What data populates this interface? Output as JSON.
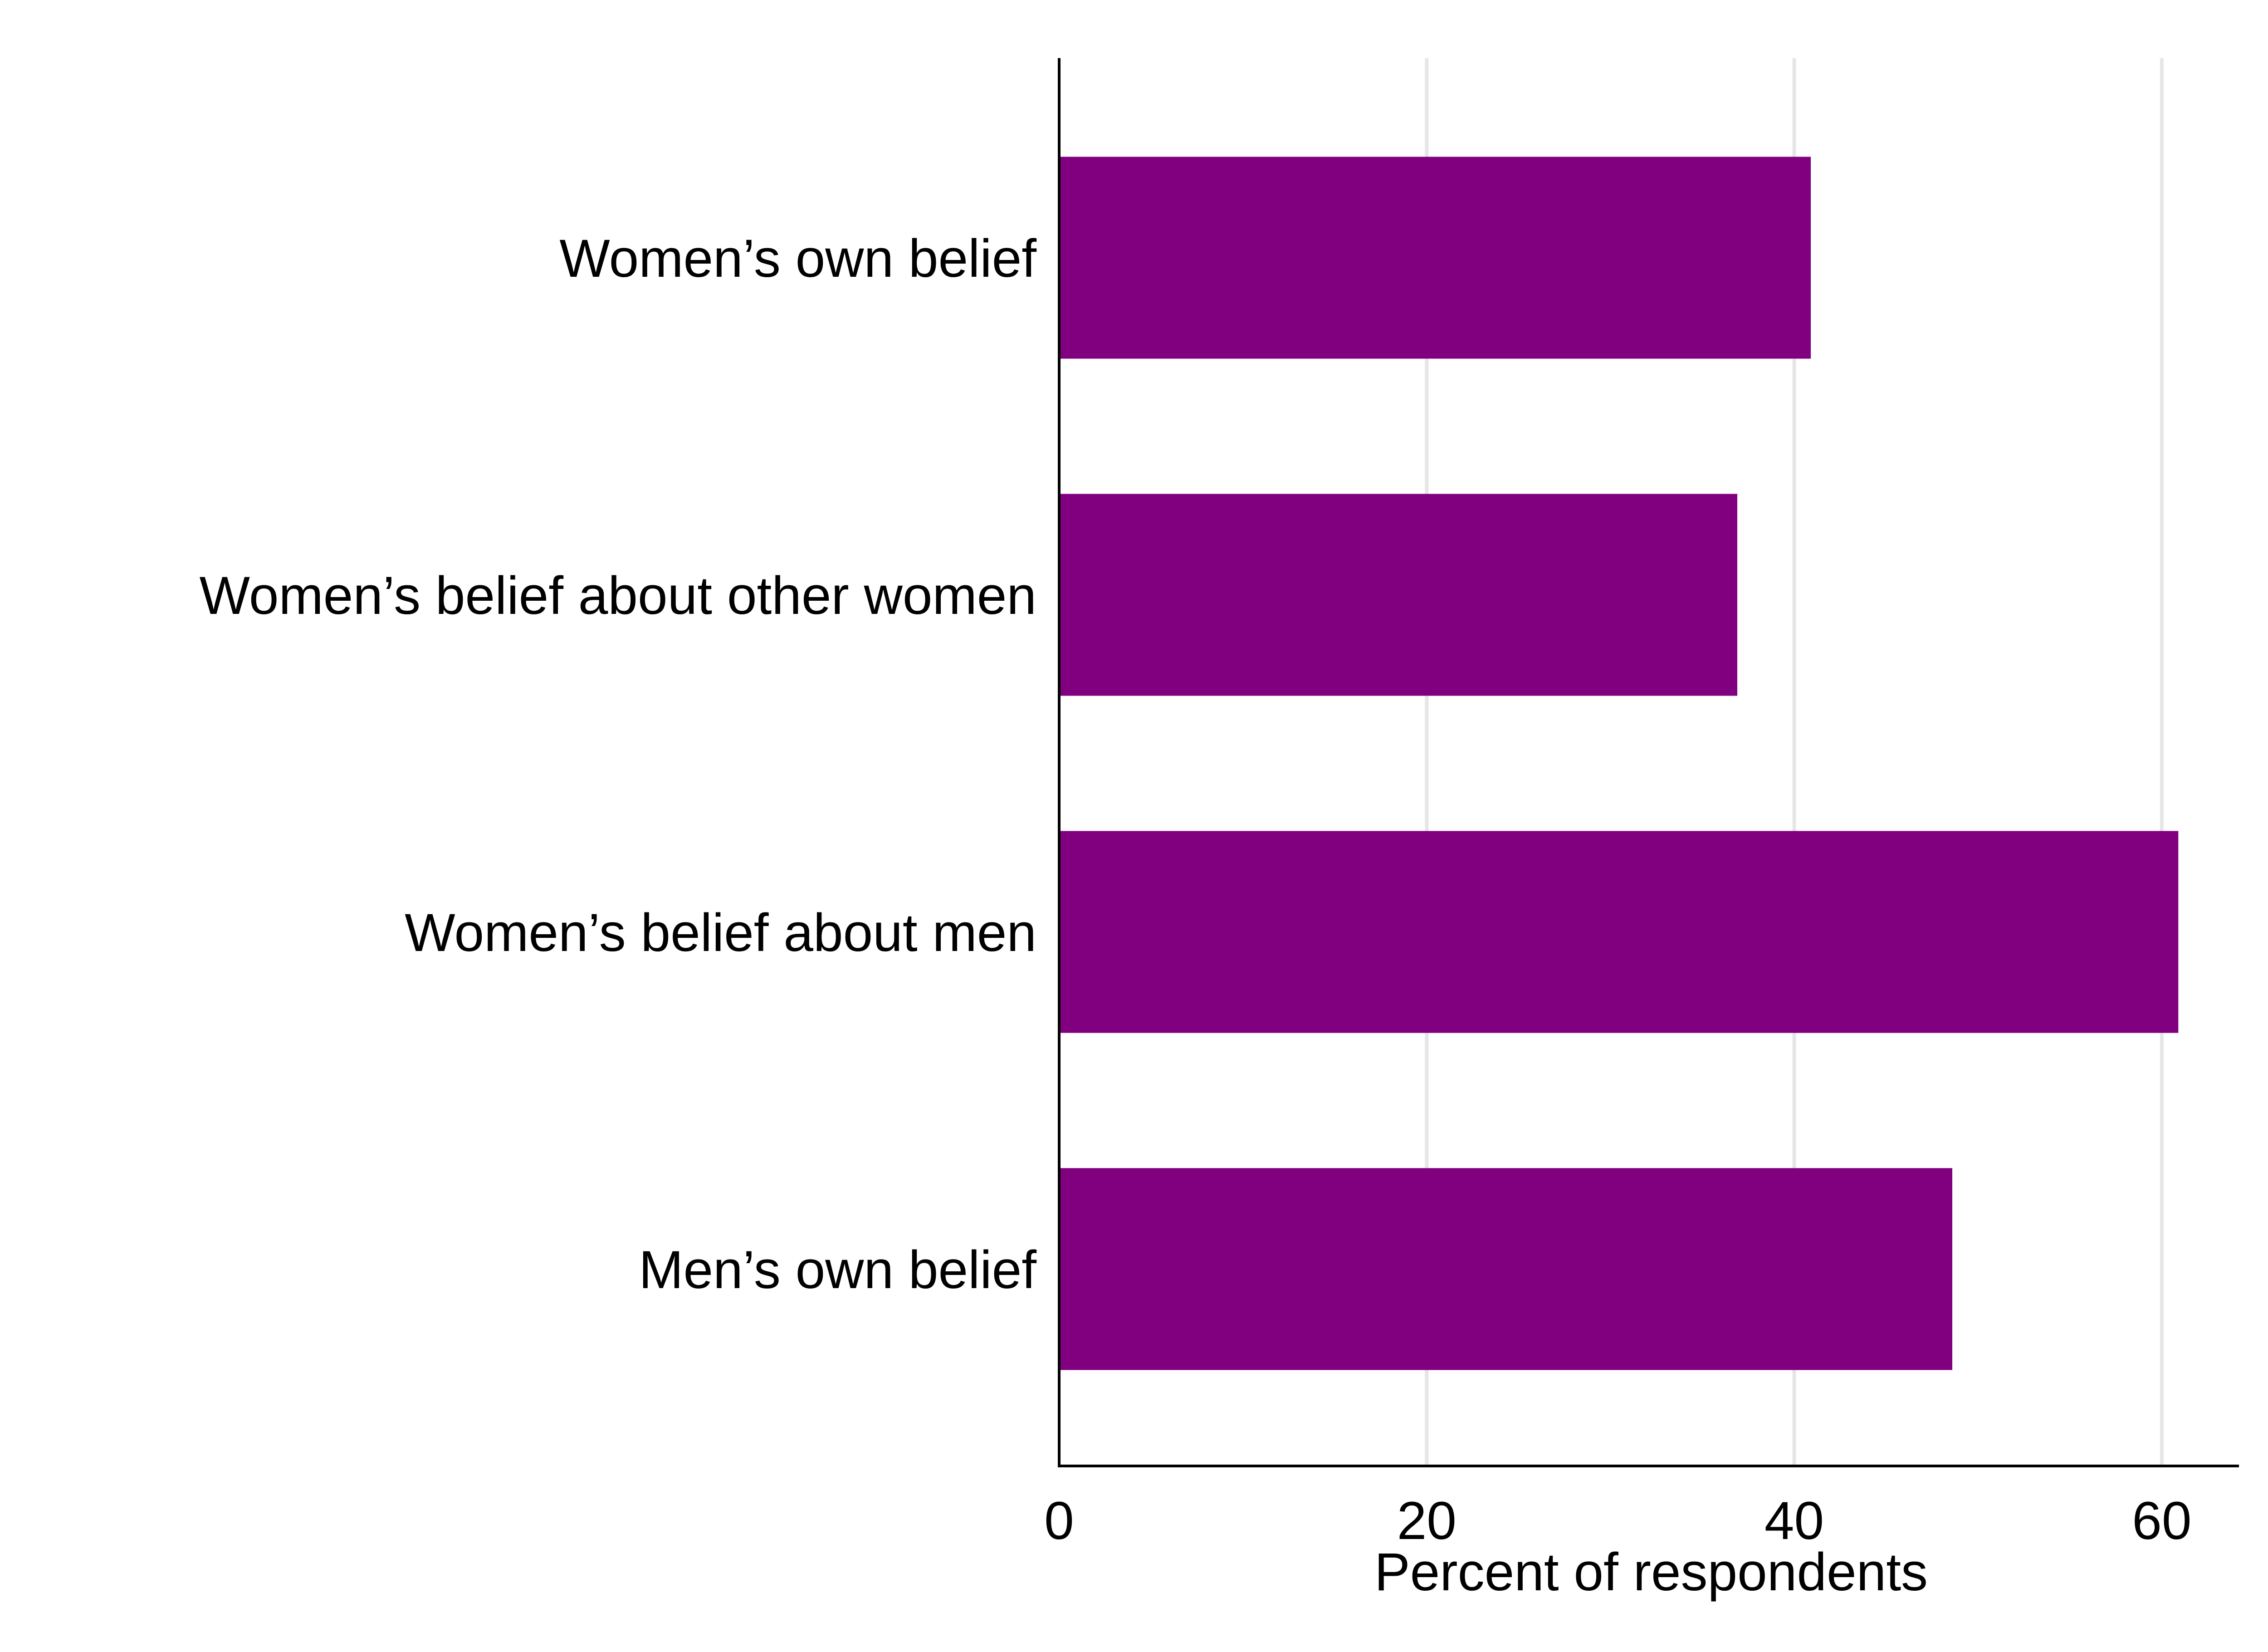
{
  "chart_data": {
    "type": "bar",
    "orientation": "horizontal",
    "categories": [
      "Women’s own belief",
      "Women’s belief about other women",
      "Women’s belief about men",
      "Men’s own belief"
    ],
    "values": [
      40.9,
      36.9,
      60.9,
      48.6
    ],
    "title": "",
    "xlabel": "Percent of respondents",
    "ylabel": "",
    "xlim": [
      0,
      64.2
    ],
    "xticks": [
      0,
      20,
      40,
      60
    ],
    "xtick_labels": [
      "0",
      "20",
      "40",
      "60"
    ],
    "grid": "vertical",
    "legend": "none",
    "colors": {
      "bar": "#800080",
      "grid": "#e6e6e6",
      "axis": "#000000"
    }
  }
}
